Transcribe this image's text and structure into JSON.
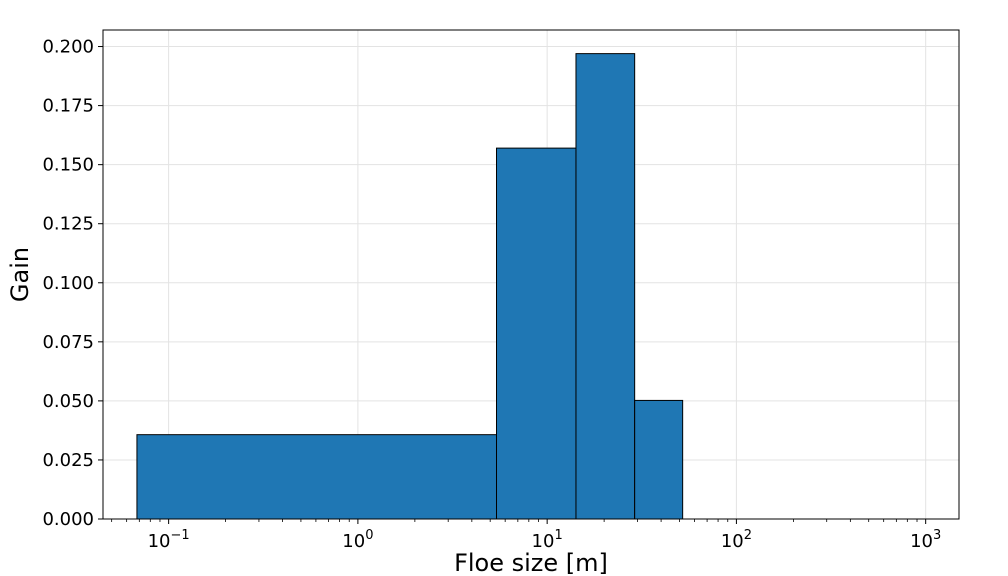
{
  "chart_data": {
    "type": "bar",
    "title": "",
    "xlabel": "Floe size [m]",
    "ylabel": "Gain",
    "xscale": "log",
    "xlim": [
      0.045,
      1500
    ],
    "ylim": [
      0,
      0.207
    ],
    "grid": true,
    "color": "#1f77b4",
    "edge_color": "#000000",
    "bins": [
      {
        "x_start": 0.068,
        "x_end": 5.4,
        "value": 0.0357
      },
      {
        "x_start": 5.4,
        "x_end": 14.2,
        "value": 0.157
      },
      {
        "x_start": 14.2,
        "x_end": 29,
        "value": 0.197
      },
      {
        "x_start": 29,
        "x_end": 52,
        "value": 0.0502
      }
    ],
    "x_ticks": [
      {
        "value": 0.1,
        "base": "10",
        "exp": "−1"
      },
      {
        "value": 1,
        "base": "10",
        "exp": "0"
      },
      {
        "value": 10,
        "base": "10",
        "exp": "1"
      },
      {
        "value": 100,
        "base": "10",
        "exp": "2"
      },
      {
        "value": 1000,
        "base": "10",
        "exp": "3"
      }
    ],
    "y_ticks": [
      {
        "value": 0,
        "label": "0.000"
      },
      {
        "value": 0.025,
        "label": "0.025"
      },
      {
        "value": 0.05,
        "label": "0.050"
      },
      {
        "value": 0.075,
        "label": "0.075"
      },
      {
        "value": 0.1,
        "label": "0.100"
      },
      {
        "value": 0.125,
        "label": "0.125"
      },
      {
        "value": 0.15,
        "label": "0.150"
      },
      {
        "value": 0.175,
        "label": "0.175"
      },
      {
        "value": 0.2,
        "label": "0.200"
      }
    ]
  }
}
